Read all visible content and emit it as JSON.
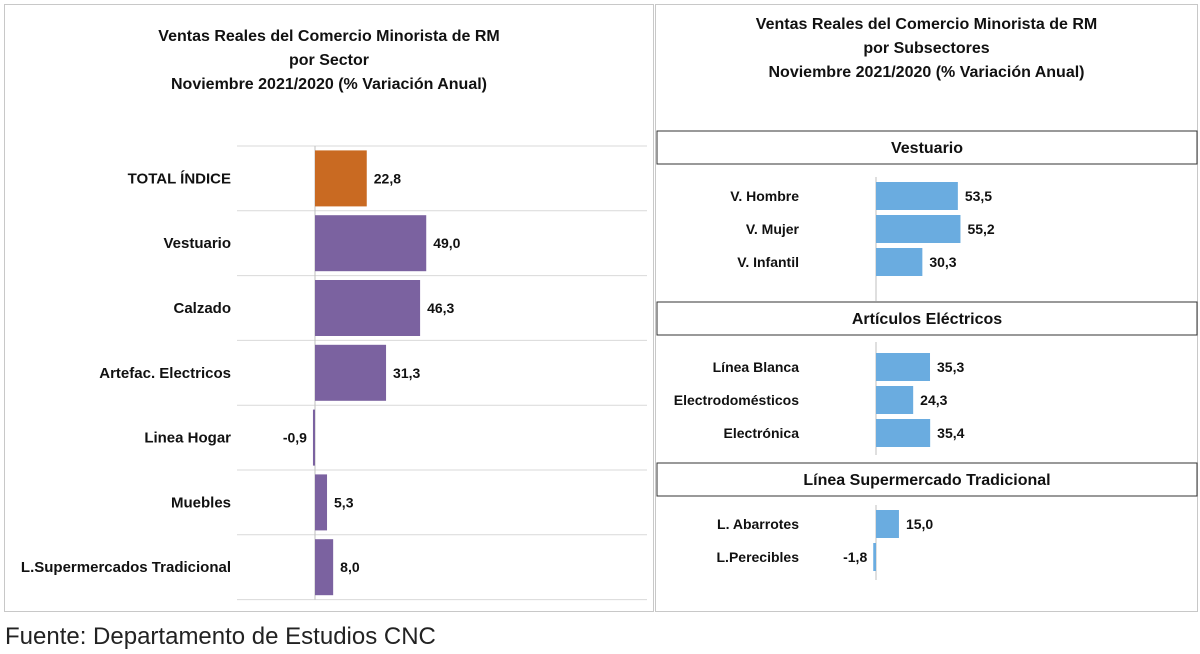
{
  "footer": {
    "source": "Fuente: Departamento de Estudios CNC"
  },
  "chart_data": [
    {
      "type": "bar",
      "orientation": "horizontal",
      "title": [
        "Ventas Reales del Comercio Minorista de RM",
        "por Sector",
        "Noviembre 2021/2020 (% Variación Anual)"
      ],
      "categories": [
        "TOTAL ÍNDICE",
        "Vestuario",
        "Calzado",
        "Artefac. Electricos",
        "Linea Hogar",
        "Muebles",
        "L.Supermercados Tradicional"
      ],
      "values": [
        22.8,
        49.0,
        46.3,
        31.3,
        -0.9,
        5.3,
        8.0
      ],
      "value_labels": [
        "22,8",
        "49,0",
        "46,3",
        "31,3",
        "-0,9",
        "5,3",
        "8,0"
      ],
      "colors": [
        "#c96a22",
        "#7b62a0",
        "#7b62a0",
        "#7b62a0",
        "#7b62a0",
        "#7b62a0",
        "#7b62a0"
      ],
      "grid": true,
      "legend": "none"
    },
    {
      "type": "bar",
      "orientation": "horizontal",
      "title": [
        "Ventas Reales del Comercio Minorista de RM",
        "por Subsectores",
        "Noviembre 2021/2020 (% Variación Anual)"
      ],
      "groups": [
        {
          "name": "Vestuario",
          "categories": [
            "V. Hombre",
            "V. Mujer",
            "V. Infantil"
          ],
          "values": [
            53.5,
            55.2,
            30.3
          ],
          "value_labels": [
            "53,5",
            "55,2",
            "30,3"
          ]
        },
        {
          "name": "Artículos Eléctricos",
          "categories": [
            "Línea Blanca",
            "Electrodomésticos",
            "Electrónica"
          ],
          "values": [
            35.3,
            24.3,
            35.4
          ],
          "value_labels": [
            "35,3",
            "24,3",
            "35,4"
          ]
        },
        {
          "name": "Línea Supermercado Tradicional",
          "categories": [
            "L. Abarrotes",
            "L.Perecibles"
          ],
          "values": [
            15.0,
            -1.8
          ],
          "value_labels": [
            "15,0",
            "-1,8"
          ]
        }
      ],
      "color": "#6aace0",
      "grid": false,
      "legend": "none"
    }
  ]
}
